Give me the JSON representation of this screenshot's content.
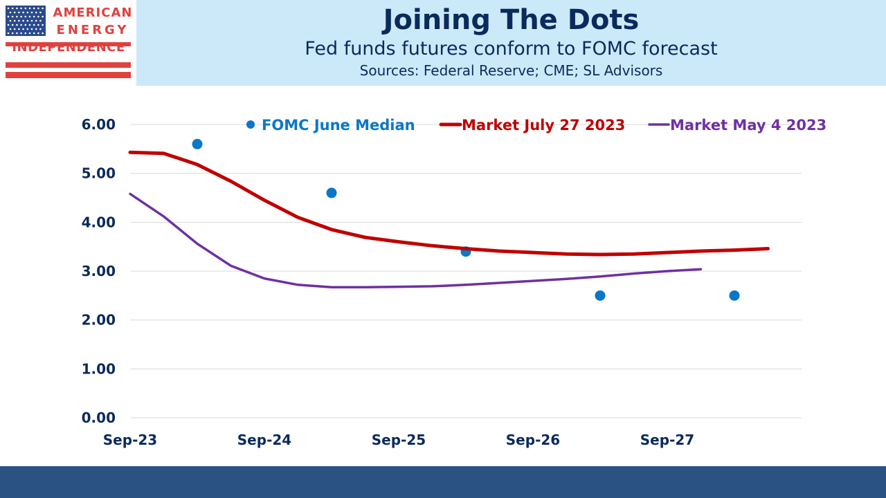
{
  "logo": {
    "line1": "AMERICAN",
    "line2": "ENERGY",
    "line3": "INDEPENDENCE",
    "colors": {
      "red": "#e0413e",
      "blue": "#2a4a8c"
    }
  },
  "header": {
    "title": "Joining The Dots",
    "subtitle": "Fed funds futures conform to FOMC forecast",
    "sources": "Sources: Federal Reserve; CME; SL Advisors"
  },
  "chart_data": {
    "type": "line",
    "x_axis": {
      "tick_labels": [
        "Sep-23",
        "Sep-24",
        "Sep-25",
        "Sep-26",
        "Sep-27"
      ],
      "tick_dates": [
        "2023-09",
        "2024-09",
        "2025-09",
        "2026-09",
        "2027-09"
      ],
      "range": [
        "2023-09",
        "2028-09"
      ]
    },
    "y_axis": {
      "range": [
        0,
        6
      ],
      "ticks": [
        0,
        1,
        2,
        3,
        4,
        5,
        6
      ],
      "tick_labels": [
        "0.00",
        "1.00",
        "2.00",
        "3.00",
        "4.00",
        "5.00",
        "6.00"
      ]
    },
    "grid": true,
    "legend_position": "top",
    "series": [
      {
        "name": "FOMC June  Median",
        "type": "scatter",
        "color": "#0a78c8",
        "points": [
          {
            "x": "2024-03",
            "y": 5.6
          },
          {
            "x": "2025-03",
            "y": 4.6
          },
          {
            "x": "2026-03",
            "y": 3.4
          },
          {
            "x": "2027-03",
            "y": 2.5
          },
          {
            "x": "2028-03",
            "y": 2.5
          }
        ]
      },
      {
        "name": "Market July 27 2023",
        "type": "line",
        "color": "#c00000",
        "points": [
          {
            "x": "2023-09",
            "y": 5.43
          },
          {
            "x": "2023-12",
            "y": 5.41
          },
          {
            "x": "2024-03",
            "y": 5.18
          },
          {
            "x": "2024-06",
            "y": 4.84
          },
          {
            "x": "2024-09",
            "y": 4.45
          },
          {
            "x": "2024-12",
            "y": 4.1
          },
          {
            "x": "2025-03",
            "y": 3.85
          },
          {
            "x": "2025-06",
            "y": 3.69
          },
          {
            "x": "2025-09",
            "y": 3.6
          },
          {
            "x": "2025-12",
            "y": 3.52
          },
          {
            "x": "2026-03",
            "y": 3.46
          },
          {
            "x": "2026-06",
            "y": 3.41
          },
          {
            "x": "2026-09",
            "y": 3.38
          },
          {
            "x": "2026-12",
            "y": 3.35
          },
          {
            "x": "2027-03",
            "y": 3.34
          },
          {
            "x": "2027-06",
            "y": 3.35
          },
          {
            "x": "2027-09",
            "y": 3.38
          },
          {
            "x": "2027-12",
            "y": 3.41
          },
          {
            "x": "2028-03",
            "y": 3.43
          },
          {
            "x": "2028-06",
            "y": 3.46
          }
        ]
      },
      {
        "name": "Market May 4 2023",
        "type": "line",
        "color": "#7030a0",
        "points": [
          {
            "x": "2023-09",
            "y": 4.58
          },
          {
            "x": "2023-12",
            "y": 4.12
          },
          {
            "x": "2024-03",
            "y": 3.56
          },
          {
            "x": "2024-06",
            "y": 3.11
          },
          {
            "x": "2024-09",
            "y": 2.85
          },
          {
            "x": "2024-12",
            "y": 2.72
          },
          {
            "x": "2025-03",
            "y": 2.67
          },
          {
            "x": "2025-06",
            "y": 2.67
          },
          {
            "x": "2025-09",
            "y": 2.68
          },
          {
            "x": "2025-12",
            "y": 2.69
          },
          {
            "x": "2026-03",
            "y": 2.72
          },
          {
            "x": "2026-06",
            "y": 2.76
          },
          {
            "x": "2026-09",
            "y": 2.8
          },
          {
            "x": "2026-12",
            "y": 2.84
          },
          {
            "x": "2027-03",
            "y": 2.89
          },
          {
            "x": "2027-06",
            "y": 2.95
          },
          {
            "x": "2027-09",
            "y": 3.0
          },
          {
            "x": "2027-12",
            "y": 3.04
          }
        ]
      }
    ]
  }
}
